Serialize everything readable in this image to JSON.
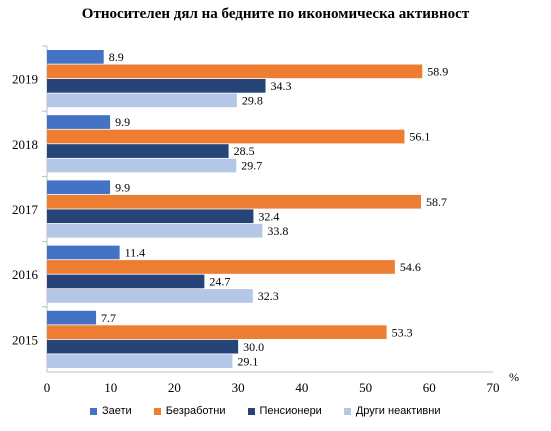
{
  "chart_data": {
    "type": "bar",
    "orientation": "horizontal",
    "title": "Относителен дял на бедните по икономическа активност",
    "unit_label": "%",
    "categories": [
      "2019",
      "2018",
      "2017",
      "2016",
      "2015"
    ],
    "xlim": [
      0,
      70
    ],
    "xticks": [
      0,
      10,
      20,
      30,
      40,
      50,
      60,
      70
    ],
    "grid": false,
    "legend_position": "bottom",
    "series": [
      {
        "name": "Заети",
        "color": "#4472C4",
        "values": [
          8.9,
          9.9,
          9.9,
          11.4,
          7.7
        ],
        "labels": [
          "8.9",
          "9.9",
          "9.9",
          "11.4",
          "7.7"
        ]
      },
      {
        "name": "Безработни",
        "color": "#ED7D31",
        "values": [
          58.9,
          56.1,
          58.7,
          54.6,
          53.3
        ],
        "labels": [
          "58.9",
          "56.1",
          "58.7",
          "54.6",
          "53.3"
        ]
      },
      {
        "name": "Пенсионери",
        "color": "#264478",
        "values": [
          34.3,
          28.5,
          32.4,
          24.7,
          30.0
        ],
        "labels": [
          "34.3",
          "28.5",
          "32.4",
          "24.7",
          "30.0"
        ]
      },
      {
        "name": "Други неактивни",
        "color": "#B4C7E7",
        "values": [
          29.8,
          29.7,
          33.8,
          32.3,
          29.1
        ],
        "labels": [
          "29.8",
          "29.7",
          "33.8",
          "32.3",
          "29.1"
        ]
      }
    ]
  }
}
